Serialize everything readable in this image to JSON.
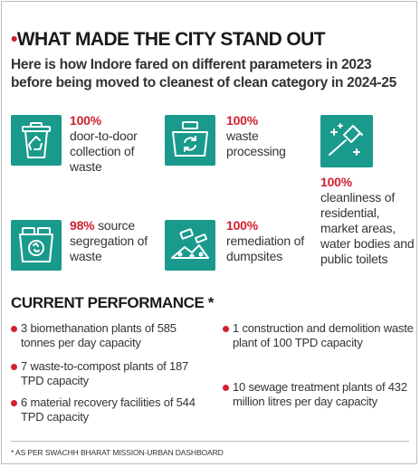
{
  "header": {
    "title": "WHAT MADE THE CITY STAND OUT",
    "subtitle": "Here is how Indore fared on different parameters in 2023 before being moved to cleanest of clean category in 2024-25"
  },
  "colors": {
    "accent": "#d1202f",
    "icon_bg": "#1a9a8c"
  },
  "parameters": [
    {
      "icon": "recycling-bin-icon",
      "percent": "100%",
      "label": "door-to-door collection of waste"
    },
    {
      "icon": "recycling-truck-icon",
      "percent": "100%",
      "label": "waste processing"
    },
    {
      "icon": "cleaning-brush-icon",
      "percent": "100%",
      "label": "cleanliness of residential, market areas, water bodies and public toilets"
    },
    {
      "icon": "segregation-bins-icon",
      "percent": "98%",
      "label": "source segregation of waste"
    },
    {
      "icon": "dumpsite-icon",
      "percent": "100%",
      "label": "remediation of dumpsites"
    }
  ],
  "performance": {
    "title": "CURRENT PERFORMANCE *",
    "items": [
      "3 biomethanation plants of 585 tonnes per day capacity",
      "7 waste-to-compost plants of 187 TPD capacity",
      "6 material recovery facilities of 544 TPD capacity",
      "1 construction and demolition waste plant of 100 TPD capacity",
      "10 sewage treatment plants of 432 million litres per day capacity"
    ]
  },
  "footnote": "* AS PER SWACHH BHARAT MISSION-URBAN DASHBOARD"
}
